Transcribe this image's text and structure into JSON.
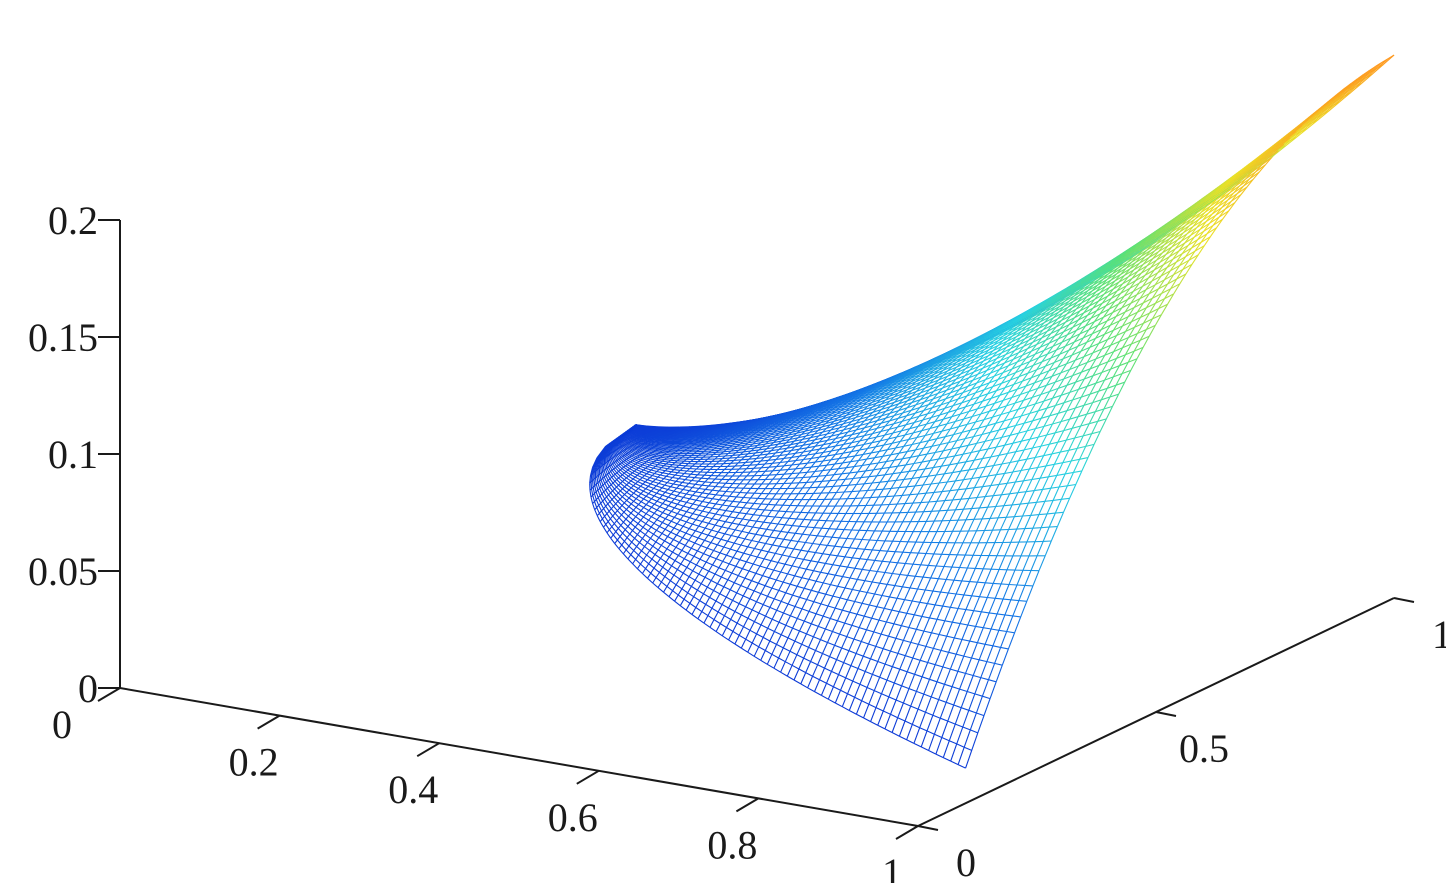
{
  "chart_data": {
    "type": "surface",
    "title": "",
    "xlabel": "",
    "ylabel": "",
    "zlabel": "",
    "xlim": [
      0,
      1
    ],
    "ylim": [
      0,
      1
    ],
    "zlim": [
      0,
      0.2
    ],
    "grid": false,
    "style": "mesh",
    "colormap": "jet",
    "x_ticks": [
      "0",
      "0.2",
      "0.4",
      "0.6",
      "0.8",
      "1"
    ],
    "y_ticks": [
      "0",
      "0.5",
      "1"
    ],
    "z_ticks": [
      "0",
      "0.05",
      "0.1",
      "0.15",
      "0.2"
    ],
    "x_tick_values": [
      0,
      0.2,
      0.4,
      0.6,
      0.8,
      1
    ],
    "y_tick_values": [
      0,
      0.5,
      1
    ],
    "z_tick_values": [
      0,
      0.05,
      0.1,
      0.15,
      0.2
    ],
    "surface_corners": [
      {
        "x": 0.05,
        "y": 1.0,
        "z": 0.018
      },
      {
        "x": 1.0,
        "y": 1.0,
        "z": 0.232
      },
      {
        "x": 1.0,
        "y": 0.05,
        "z": 0.12
      },
      {
        "x": 1.0,
        "y": 0.1,
        "z": 0.015
      }
    ],
    "colors": {
      "low": "#0a2bd6",
      "mid": "#2fd1e6",
      "high": "#ffe22a",
      "peak": "#ff9a1a"
    }
  }
}
